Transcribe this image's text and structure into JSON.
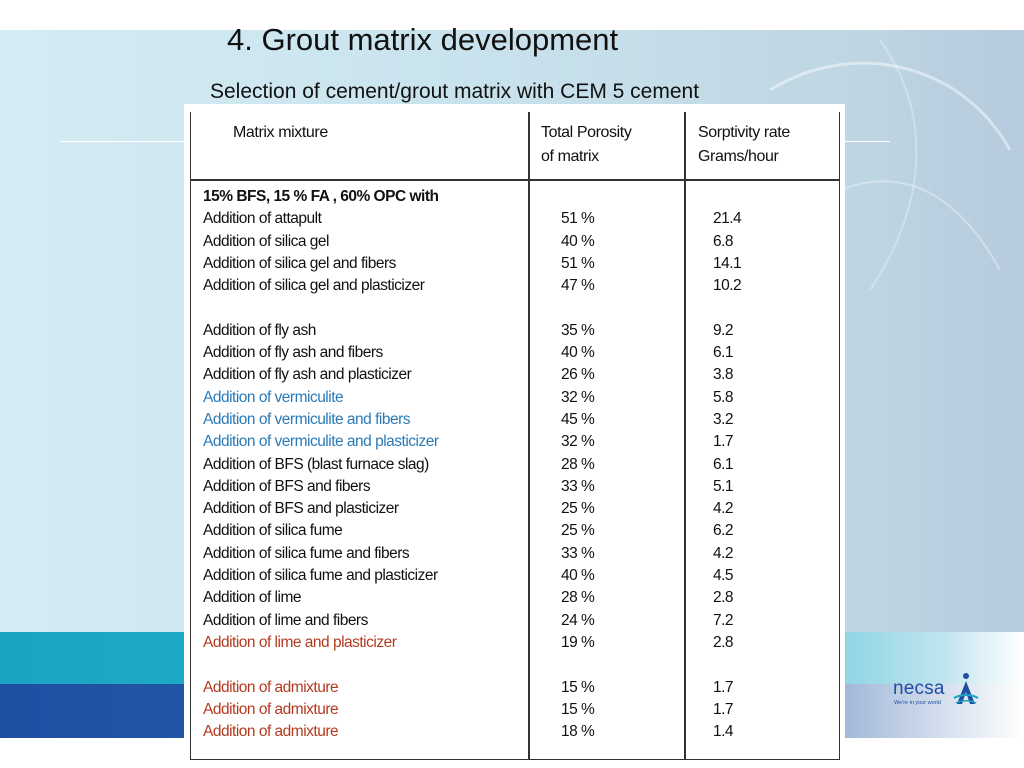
{
  "slide": {
    "title": "4. Grout matrix development",
    "subtitle": "Selection of cement/grout matrix with CEM 5 cement"
  },
  "logo": {
    "text": "necsa",
    "tagline": "We're in your world"
  },
  "colors": {
    "teal_band": "#1aa5c2",
    "blue_band": "#1f4fa2",
    "blue_text": "#2a7ab7",
    "red_text": "#b33a1f"
  },
  "table": {
    "headers": {
      "col1": "Matrix mixture",
      "col2_line1": "Total Porosity",
      "col2_line2": "of matrix",
      "col3_line1": "Sorptivity rate",
      "col3_line2": "Grams/hour"
    },
    "rows": [
      {
        "mixture": "15% BFS, 15 % FA , 60% OPC with",
        "porosity": "",
        "sorptivity": "",
        "style": "bold"
      },
      {
        "mixture": "Addition of attapult",
        "porosity": "51 %",
        "sorptivity": "21.4",
        "style": ""
      },
      {
        "mixture": "Addition of silica gel",
        "porosity": "40 %",
        "sorptivity": "6.8",
        "style": ""
      },
      {
        "mixture": "Addition of silica gel and fibers",
        "porosity": "51 %",
        "sorptivity": "14.1",
        "style": ""
      },
      {
        "mixture": "Addition of silica gel and plasticizer",
        "porosity": "47 %",
        "sorptivity": "10.2",
        "style": ""
      },
      {
        "mixture": "",
        "porosity": "",
        "sorptivity": "",
        "style": "gap"
      },
      {
        "mixture": "Addition of fly ash",
        "porosity": "35 %",
        "sorptivity": "9.2",
        "style": ""
      },
      {
        "mixture": "Addition of fly ash and fibers",
        "porosity": "40 %",
        "sorptivity": "6.1",
        "style": ""
      },
      {
        "mixture": "Addition of fly ash and plasticizer",
        "porosity": "26 %",
        "sorptivity": "3.8",
        "style": ""
      },
      {
        "mixture": "Addition of vermiculite",
        "porosity": "32  %",
        "sorptivity": "5.8",
        "style": "blue"
      },
      {
        "mixture": "Addition of vermiculite  and fibers",
        "porosity": "45  %",
        "sorptivity": "3.2",
        "style": "blue"
      },
      {
        "mixture": "Addition of vermiculite and plasticizer",
        "porosity": "32  %",
        "sorptivity": "1.7",
        "style": "blue"
      },
      {
        "mixture": "Addition of BFS (blast furnace slag)",
        "porosity": "28 %",
        "sorptivity": "6.1",
        "style": ""
      },
      {
        "mixture": "Addition of BFS and fibers",
        "porosity": "33 %",
        "sorptivity": "5.1",
        "style": ""
      },
      {
        "mixture": "Addition of BFS and plasticizer",
        "porosity": "25 %",
        "sorptivity": "4.2",
        "style": ""
      },
      {
        "mixture": "Addition of silica fume",
        "porosity": "25 %",
        "sorptivity": "6.2",
        "style": ""
      },
      {
        "mixture": "Addition of silica fume and fibers",
        "porosity": "33 %",
        "sorptivity": "4.2",
        "style": ""
      },
      {
        "mixture": "Addition of silica fume and plasticizer",
        "porosity": "40 %",
        "sorptivity": "4.5",
        "style": ""
      },
      {
        "mixture": "Addition of lime",
        "porosity": "28 %",
        "sorptivity": "2.8",
        "style": ""
      },
      {
        "mixture": "Addition of lime and fibers",
        "porosity": "24 %",
        "sorptivity": "7.2",
        "style": ""
      },
      {
        "mixture": "Addition of lime and plasticizer",
        "porosity": "19 %",
        "sorptivity": "2.8",
        "style": "red"
      },
      {
        "mixture": "",
        "porosity": "",
        "sorptivity": "",
        "style": "gap"
      },
      {
        "mixture": "Addition of admixture",
        "porosity": "15 %",
        "sorptivity": "1.7",
        "style": "red"
      },
      {
        "mixture": "Addition of admixture",
        "porosity": "15 %",
        "sorptivity": "1.7",
        "style": "red"
      },
      {
        "mixture": "Addition of admixture",
        "porosity": "18 %",
        "sorptivity": "1.4",
        "style": "red"
      }
    ]
  }
}
